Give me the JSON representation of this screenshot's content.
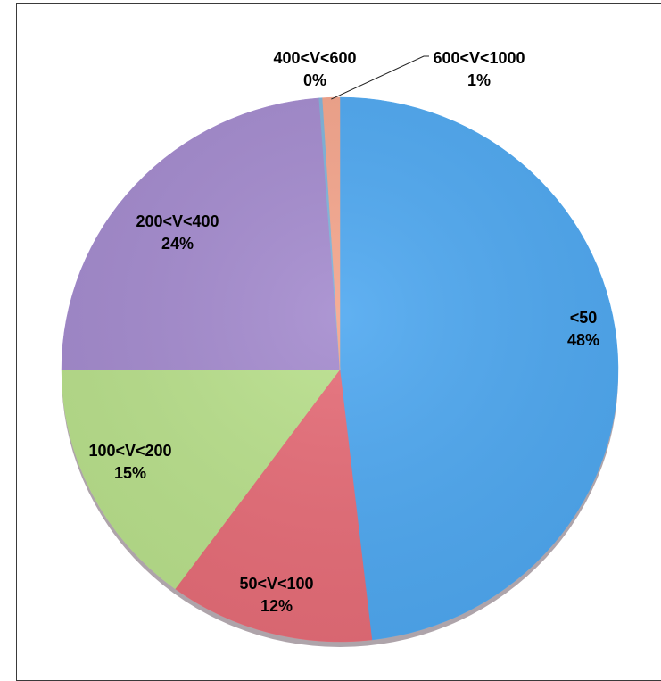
{
  "chart_data": {
    "type": "pie",
    "title": "",
    "slices": [
      {
        "label": "<50",
        "percent_label": "48%",
        "value": 48.5,
        "color": "#4fa8f0"
      },
      {
        "label": "50<V<100",
        "percent_label": "12%",
        "value": 12.0,
        "color": "#e66d78"
      },
      {
        "label": "100<V<200",
        "percent_label": "15%",
        "value": 15.0,
        "color": "#b9e08c"
      },
      {
        "label": "200<V<400",
        "percent_label": "24%",
        "value": 24.0,
        "color": "#a48bce"
      },
      {
        "label": "400<V<600",
        "percent_label": "0%",
        "value": 0.2,
        "color": "#7fb3d9"
      },
      {
        "label": "600<V<1000",
        "percent_label": "1%",
        "value": 1.0,
        "color": "#f4a58c"
      }
    ],
    "start_angle": "12 o'clock",
    "direction": "clockwise",
    "legend": "none",
    "leader_line": "600<V<1000"
  }
}
